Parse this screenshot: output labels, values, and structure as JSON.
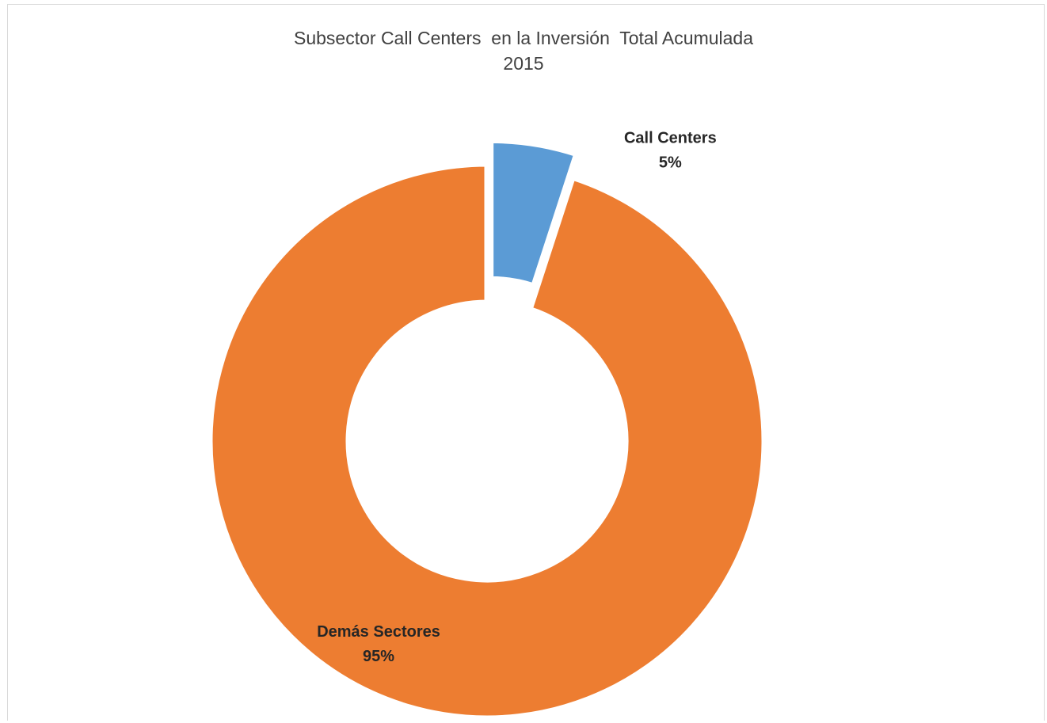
{
  "chart_data": {
    "type": "pie",
    "subtype": "doughnut",
    "title": "Subsector Call Centers  en la Inversión  Total Acumulada",
    "subtitle": "2015",
    "slices": [
      {
        "label": "Call Centers",
        "value": 5,
        "value_label": "5%",
        "color": "#5b9bd5",
        "exploded": true
      },
      {
        "label": "Demás Sectores",
        "value": 95,
        "value_label": "95%",
        "color": "#ed7d31",
        "exploded": false
      }
    ],
    "legend": "none",
    "grid": false
  }
}
